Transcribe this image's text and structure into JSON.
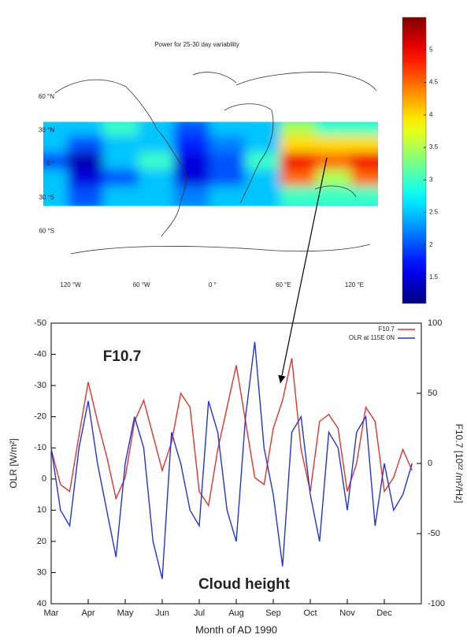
{
  "chart_data": [
    {
      "type": "heatmap",
      "title": "Power for 25-30 day variability",
      "x": [
        -135,
        -105,
        -75,
        -45,
        -15,
        15,
        45,
        75,
        105,
        135
      ],
      "y": [
        30,
        15,
        0,
        -15,
        -30
      ],
      "z": [
        [
          2.5,
          2.5,
          3,
          2.5,
          2,
          2.5,
          2.5,
          3.5,
          3,
          3
        ],
        [
          2.5,
          2,
          2.5,
          2.5,
          1.8,
          2.2,
          2.5,
          4,
          4,
          4
        ],
        [
          2,
          1.3,
          2.5,
          3,
          1.5,
          2,
          3,
          5,
          4.5,
          5
        ],
        [
          2.5,
          1.5,
          2,
          2.5,
          1.5,
          2,
          2.5,
          4.5,
          3.5,
          4.5
        ],
        [
          2.5,
          2,
          2.5,
          2.5,
          2.2,
          2.5,
          2.5,
          3,
          3,
          3
        ]
      ],
      "xlim": [
        -143,
        140
      ],
      "ylim": [
        -90,
        90
      ],
      "xticks": [
        {
          "value": -120,
          "label": "120 °W"
        },
        {
          "value": -60,
          "label": "60 °W"
        },
        {
          "value": 0,
          "label": "0 °"
        },
        {
          "value": 60,
          "label": "60 °E"
        },
        {
          "value": 120,
          "label": "120 °E"
        }
      ],
      "yticks": [
        {
          "value": 60,
          "label": "60 °N"
        },
        {
          "value": 30,
          "label": "30 °N"
        },
        {
          "value": 0,
          "label": "0 °"
        },
        {
          "value": -30,
          "label": "30 °S"
        },
        {
          "value": -60,
          "label": "60 °S"
        }
      ],
      "colormap": "jet",
      "zlim": [
        1.1,
        5.5
      ],
      "zticks": [
        1.5,
        2,
        2.5,
        3,
        3.5,
        4,
        4.5,
        5
      ]
    },
    {
      "type": "line",
      "xlabel": "Month of AD 1990",
      "ylabel": "OLR [W/m²]",
      "y2label": "F10.7 [10²² /m²/Hz]",
      "categories": [
        "Mar",
        null,
        null,
        null,
        "Apr",
        null,
        null,
        null,
        "May",
        null,
        null,
        null,
        "Jun",
        null,
        null,
        null,
        "Jul",
        null,
        null,
        null,
        "Aug",
        null,
        null,
        null,
        "Sep",
        null,
        null,
        null,
        "Oct",
        null,
        null,
        null,
        "Nov",
        null,
        null,
        null,
        "Dec",
        null,
        null,
        null
      ],
      "ylim": [
        40,
        -50
      ],
      "yticks": [
        -50,
        -40,
        -30,
        -20,
        -10,
        0,
        10,
        20,
        30,
        40
      ],
      "y2lim": [
        -100,
        100
      ],
      "y2ticks": [
        -100,
        -50,
        0,
        50,
        100
      ],
      "legend": "upper right",
      "series": [
        {
          "name": "F10.7",
          "color": "#e3342f",
          "axis": "y2",
          "values": [
            10,
            -15,
            -20,
            20,
            58,
            30,
            5,
            -25,
            -10,
            30,
            45,
            20,
            -5,
            15,
            50,
            40,
            -20,
            -30,
            10,
            40,
            70,
            30,
            -10,
            -15,
            25,
            45,
            75,
            10,
            -20,
            30,
            35,
            25,
            -20,
            0,
            40,
            30,
            -20,
            -10,
            10,
            -5
          ]
        },
        {
          "name": "OLR at 115E 0N",
          "color": "#2233dd",
          "values": [
            -10,
            10,
            15,
            -10,
            -25,
            -5,
            10,
            25,
            -5,
            -20,
            -10,
            20,
            32,
            -15,
            -5,
            10,
            15,
            -25,
            -15,
            10,
            20,
            -20,
            -44,
            -10,
            5,
            28,
            -15,
            -20,
            5,
            20,
            -15,
            -10,
            10,
            -15,
            -20,
            15,
            -5,
            10,
            5,
            -5
          ]
        }
      ],
      "annotations": [
        {
          "text": "F10.7",
          "color": "#e3342f"
        },
        {
          "text": "Cloud height",
          "color": "#3a6fe0"
        }
      ]
    }
  ]
}
